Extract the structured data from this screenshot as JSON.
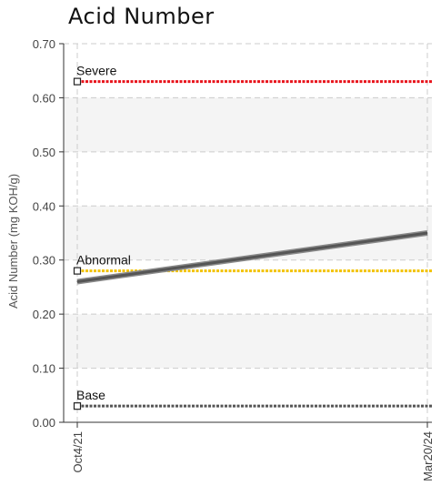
{
  "chart_data": {
    "type": "line",
    "title": "Acid Number",
    "ylabel": "Acid Number (mg KOH/g)",
    "xlabel": "",
    "ylim": [
      0,
      0.7
    ],
    "yticks": [
      "0.00",
      "0.10",
      "0.20",
      "0.30",
      "0.40",
      "0.50",
      "0.60",
      "0.70"
    ],
    "x": [
      "Oct4/21",
      "Mar20/24"
    ],
    "series": [
      {
        "values": [
          0.26,
          0.35
        ],
        "color": "#555555"
      }
    ],
    "reference_lines": [
      {
        "label": "Severe",
        "value": 0.63,
        "color": "#e8141c"
      },
      {
        "label": "Abnormal",
        "value": 0.28,
        "color": "#f2c200"
      },
      {
        "label": "Base",
        "value": 0.03,
        "color": "#555555"
      }
    ],
    "grid": true,
    "bands": true
  }
}
